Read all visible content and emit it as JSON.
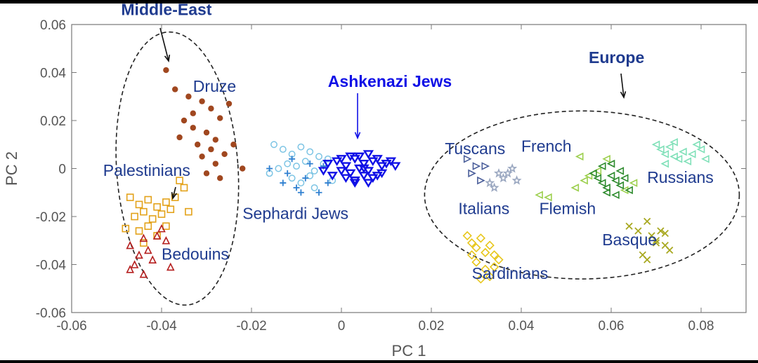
{
  "chart_data": {
    "type": "scatter",
    "xlabel": "PC 1",
    "ylabel": "PC 2",
    "xlim": [
      -0.06,
      0.09
    ],
    "ylim": [
      -0.06,
      0.06
    ],
    "xticks": [
      "-0.06",
      "-0.04",
      "-0.02",
      "0",
      "0.02",
      "0.04",
      "0.06",
      "0.08"
    ],
    "yticks": [
      "0.06",
      "0.04",
      "0.02",
      "0",
      "-0.02",
      "-0.04",
      "-0.06"
    ],
    "grid": false,
    "series": [
      {
        "name": "Druze",
        "marker": "circle-filled",
        "color": "#a0471f",
        "x": [
          -0.039,
          -0.037,
          -0.034,
          -0.031,
          -0.029,
          -0.027,
          -0.025,
          -0.035,
          -0.033,
          -0.03,
          -0.028,
          -0.032,
          -0.029,
          -0.026,
          -0.024,
          -0.036,
          -0.031,
          -0.028,
          -0.022,
          -0.03,
          -0.027,
          -0.033
        ],
        "y": [
          0.041,
          0.033,
          0.03,
          0.028,
          0.025,
          0.021,
          0.027,
          0.02,
          0.017,
          0.015,
          0.012,
          0.01,
          0.008,
          0.006,
          0.01,
          0.013,
          0.005,
          0.002,
          0.0,
          -0.002,
          -0.004,
          0.023
        ]
      },
      {
        "name": "Palestinians",
        "marker": "square-open",
        "color": "#e3a21a",
        "x": [
          -0.047,
          -0.045,
          -0.043,
          -0.041,
          -0.039,
          -0.037,
          -0.035,
          -0.046,
          -0.044,
          -0.042,
          -0.04,
          -0.038,
          -0.048,
          -0.045,
          -0.043,
          -0.041,
          -0.036,
          -0.034,
          -0.044,
          -0.039
        ],
        "y": [
          -0.012,
          -0.015,
          -0.013,
          -0.016,
          -0.014,
          -0.012,
          -0.008,
          -0.02,
          -0.018,
          -0.021,
          -0.019,
          -0.017,
          -0.025,
          -0.026,
          -0.024,
          -0.028,
          -0.005,
          -0.018,
          -0.031,
          -0.024
        ]
      },
      {
        "name": "Bedouins",
        "marker": "triangle-open",
        "color": "#b51e1e",
        "x": [
          -0.047,
          -0.045,
          -0.043,
          -0.041,
          -0.046,
          -0.044,
          -0.042,
          -0.039,
          -0.038,
          -0.04,
          -0.044,
          -0.047
        ],
        "y": [
          -0.032,
          -0.036,
          -0.034,
          -0.028,
          -0.04,
          -0.044,
          -0.038,
          -0.03,
          -0.041,
          -0.025,
          -0.029,
          -0.042
        ]
      },
      {
        "name": "Sephardi Jews",
        "marker": "circle-open",
        "color": "#7cc4e4",
        "x": [
          -0.015,
          -0.013,
          -0.011,
          -0.009,
          -0.007,
          -0.005,
          -0.012,
          -0.01,
          -0.008,
          -0.006,
          -0.004,
          -0.014,
          -0.011,
          -0.009,
          -0.007,
          -0.003,
          -0.016,
          -0.006,
          -0.002
        ],
        "y": [
          0.01,
          0.008,
          0.006,
          0.009,
          0.007,
          0.005,
          0.002,
          0.001,
          0.003,
          -0.001,
          0.002,
          0.0,
          -0.004,
          -0.006,
          -0.003,
          0.004,
          -0.002,
          -0.008,
          -0.005
        ]
      },
      {
        "name": "Sephardi Jews (+)",
        "marker": "plus",
        "color": "#2e7fd0",
        "x": [
          -0.016,
          -0.012,
          -0.01,
          -0.008,
          -0.005,
          -0.003,
          -0.011,
          -0.009,
          -0.004,
          -0.013,
          -0.007
        ],
        "y": [
          0.0,
          -0.002,
          -0.008,
          -0.004,
          -0.01,
          -0.006,
          0.004,
          -0.01,
          0.001,
          -0.006,
          0.002
        ]
      },
      {
        "name": "Ashkenazi Jews",
        "marker": "triangle-down-filled",
        "color": "#1010e6",
        "x": [
          -0.003,
          -0.001,
          0.001,
          0.003,
          0.005,
          0.007,
          0.009,
          0.0,
          0.002,
          0.004,
          0.006,
          0.008,
          0.01,
          -0.002,
          0.001,
          0.003,
          0.005,
          0.007,
          0.004,
          0.006,
          0.002,
          0.008,
          0.011,
          0.012,
          -0.004,
          0.0,
          0.003,
          0.005,
          0.009,
          0.006
        ],
        "y": [
          0.002,
          0.003,
          0.001,
          0.004,
          0.002,
          0.003,
          0.001,
          -0.001,
          -0.002,
          0.0,
          -0.001,
          -0.003,
          0.002,
          -0.003,
          -0.004,
          -0.005,
          -0.003,
          -0.004,
          0.005,
          0.006,
          0.005,
          0.004,
          0.003,
          0.001,
          -0.001,
          0.004,
          -0.006,
          0.0,
          -0.002,
          -0.006
        ]
      },
      {
        "name": "Tuscans",
        "marker": "triangle-right-open",
        "color": "#4a5e9a",
        "x": [
          0.028,
          0.029,
          0.03,
          0.031,
          0.032
        ],
        "y": [
          0.004,
          -0.002,
          0.001,
          -0.005,
          0.001
        ]
      },
      {
        "name": "Italians",
        "marker": "pentagram-open",
        "color": "#9aa7c0",
        "x": [
          0.033,
          0.034,
          0.036,
          0.037,
          0.038,
          0.039,
          0.035
        ],
        "y": [
          -0.006,
          -0.008,
          -0.004,
          -0.002,
          0.0,
          -0.005,
          -0.002
        ]
      },
      {
        "name": "Sardinians",
        "marker": "diamond-open",
        "color": "#e7c61b",
        "x": [
          0.028,
          0.029,
          0.03,
          0.031,
          0.032,
          0.033,
          0.034,
          0.035,
          0.03,
          0.032,
          0.034,
          0.029,
          0.033,
          0.031
        ],
        "y": [
          -0.028,
          -0.031,
          -0.033,
          -0.029,
          -0.035,
          -0.032,
          -0.036,
          -0.038,
          -0.039,
          -0.042,
          -0.041,
          -0.036,
          -0.045,
          -0.046
        ]
      },
      {
        "name": "French",
        "marker": "triangle-left-open",
        "color": "#9ccf4d",
        "x": [
          0.044,
          0.046,
          0.052,
          0.054,
          0.055,
          0.057,
          0.059,
          0.063,
          0.065,
          0.053
        ],
        "y": [
          -0.011,
          -0.012,
          -0.008,
          -0.005,
          -0.003,
          -0.001,
          0.004,
          -0.009,
          -0.006,
          0.005
        ]
      },
      {
        "name": "Flemish",
        "marker": "triangle-left-open",
        "color": "#2c8a2c",
        "x": [
          0.056,
          0.057,
          0.058,
          0.059,
          0.06,
          0.061,
          0.062,
          0.063,
          0.064,
          0.058,
          0.06,
          0.062,
          0.059,
          0.061
        ],
        "y": [
          -0.002,
          -0.004,
          -0.006,
          -0.008,
          -0.003,
          -0.005,
          -0.007,
          -0.004,
          -0.009,
          0.001,
          0.002,
          -0.001,
          -0.01,
          -0.011
        ]
      },
      {
        "name": "Russians",
        "marker": "triangle-left-open",
        "color": "#7fe0b8",
        "x": [
          0.07,
          0.071,
          0.072,
          0.073,
          0.074,
          0.075,
          0.076,
          0.077,
          0.078,
          0.079,
          0.08,
          0.081,
          0.072,
          0.074
        ],
        "y": [
          0.01,
          0.008,
          0.006,
          0.009,
          0.005,
          0.004,
          0.007,
          0.003,
          0.006,
          0.01,
          0.008,
          0.004,
          0.002,
          0.011
        ]
      },
      {
        "name": "Basque",
        "marker": "x",
        "color": "#a8a820",
        "x": [
          0.064,
          0.066,
          0.068,
          0.069,
          0.07,
          0.071,
          0.072,
          0.073,
          0.067,
          0.068,
          0.07,
          0.072
        ],
        "y": [
          -0.024,
          -0.026,
          -0.022,
          -0.028,
          -0.03,
          -0.026,
          -0.032,
          -0.034,
          -0.036,
          -0.038,
          -0.031,
          -0.027
        ]
      }
    ],
    "labels": [
      {
        "text": "Druze",
        "x": -0.033,
        "y": 0.032
      },
      {
        "text": "Palestinians",
        "x": -0.053,
        "y": -0.003
      },
      {
        "text": "Bedouins",
        "x": -0.04,
        "y": -0.038
      },
      {
        "text": "Sephardi Jews",
        "x": -0.022,
        "y": -0.021
      },
      {
        "text": "Tuscans",
        "x": 0.023,
        "y": 0.006
      },
      {
        "text": "French",
        "x": 0.04,
        "y": 0.007
      },
      {
        "text": "Italians",
        "x": 0.026,
        "y": -0.019
      },
      {
        "text": "Flemish",
        "x": 0.044,
        "y": -0.019
      },
      {
        "text": "Russians",
        "x": 0.068,
        "y": -0.006
      },
      {
        "text": "Basque",
        "x": 0.058,
        "y": -0.032
      },
      {
        "text": "Sardinians",
        "x": 0.029,
        "y": -0.046
      }
    ],
    "annotations": [
      {
        "text": "Middle-East",
        "color": "#1f3b8f",
        "x": -0.049,
        "y": 0.064
      },
      {
        "text": "Ashkenazi Jews",
        "color": "#1010e6",
        "x": -0.003,
        "y": 0.034
      },
      {
        "text": "Europe",
        "color": "#1f3b8f",
        "x": 0.055,
        "y": 0.044
      }
    ],
    "clusters": [
      {
        "name": "middle-east-ellipse",
        "cx": -0.0365,
        "cy": 0.0,
        "rx": 0.0135,
        "ry": 0.057,
        "angle_deg": -4
      },
      {
        "name": "europe-ellipse",
        "cx": 0.0535,
        "cy": -0.011,
        "rx": 0.035,
        "ry": 0.035,
        "angle_deg": 0
      }
    ]
  }
}
